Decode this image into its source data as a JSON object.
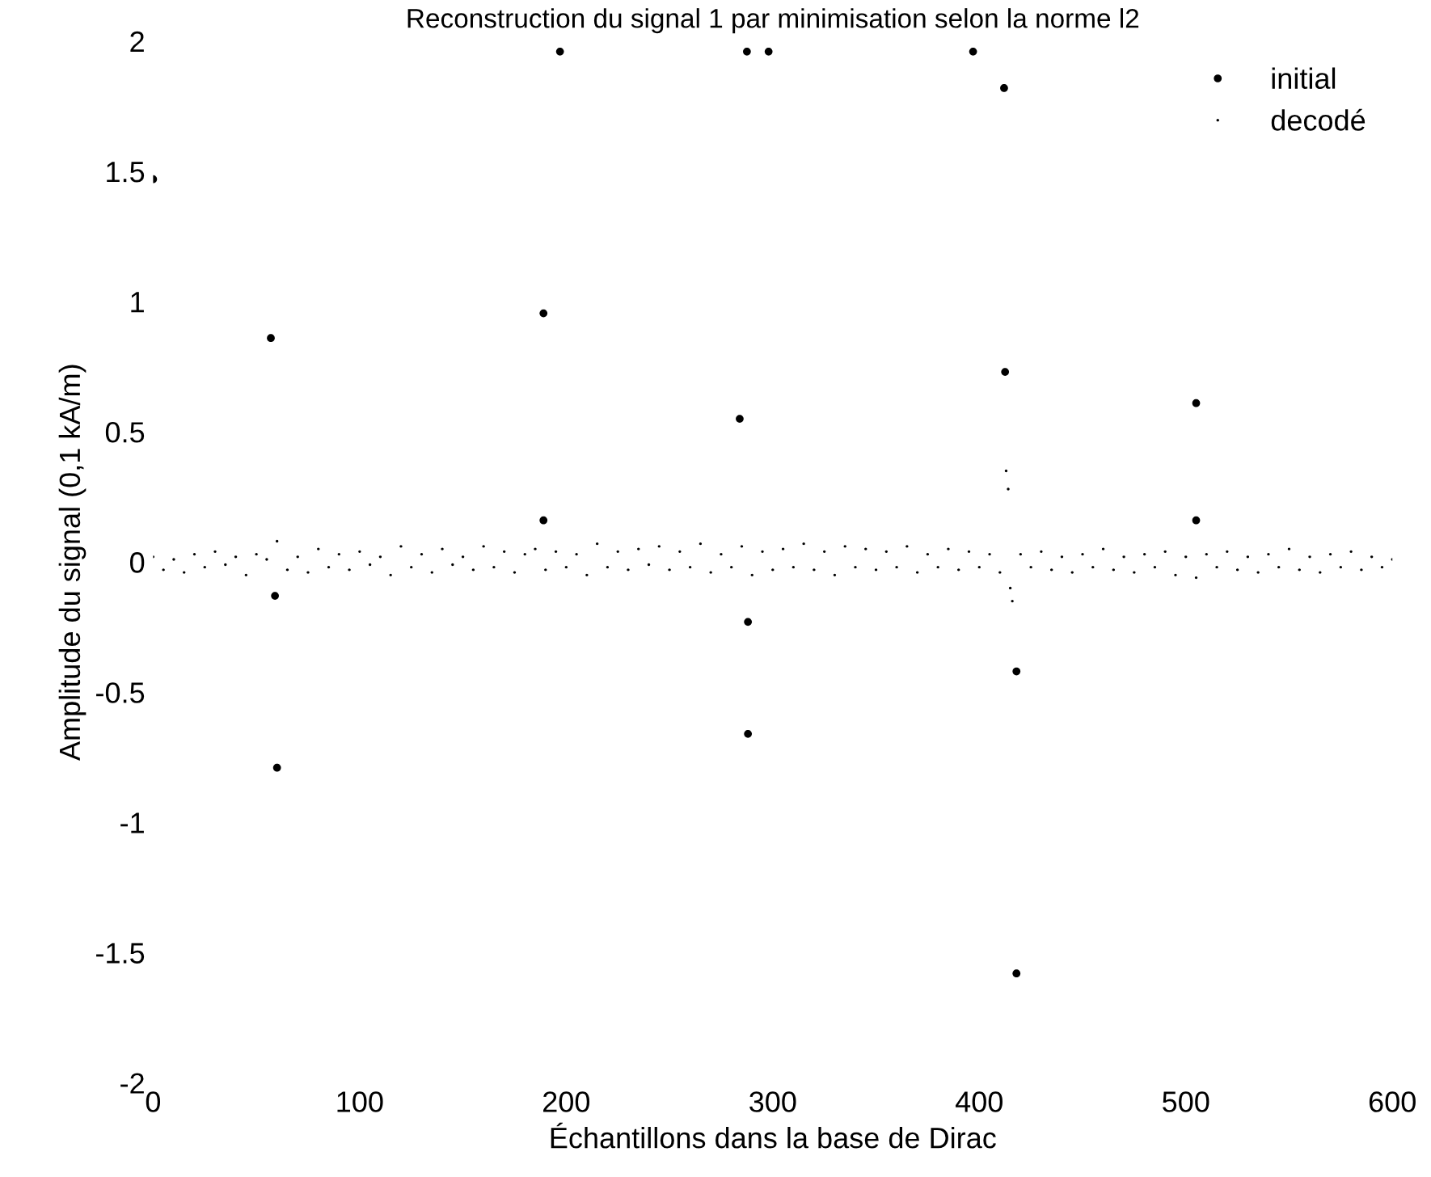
{
  "chart_data": {
    "type": "scatter",
    "title": "Reconstruction du signal 1 par minimisation selon la norme l2",
    "xlabel": "Échantillons dans la base de Dirac",
    "ylabel": "Amplitude du signal (0,1 kA/m)",
    "xlim": [
      0,
      600
    ],
    "ylim": [
      -2,
      2
    ],
    "xticks": [
      0,
      100,
      200,
      300,
      400,
      500,
      600
    ],
    "yticks": [
      -2,
      -1.5,
      -1,
      -0.5,
      0,
      0.5,
      1,
      1.5,
      2
    ],
    "grid": false,
    "legend": "top right",
    "marker": "circle",
    "series": [
      {
        "name": "initial",
        "color": "#000000",
        "x": [
          0,
          57,
          59,
          60,
          189,
          189,
          197,
          284,
          287.5,
          288,
          288,
          298,
          397,
          412,
          412.5,
          418,
          418,
          505,
          505
        ],
        "values": [
          1.47,
          0.86,
          -0.13,
          -0.79,
          0.955,
          0.16,
          1.96,
          0.55,
          1.96,
          -0.66,
          -0.23,
          1.96,
          1.96,
          1.82,
          0.73,
          -0.42,
          -1.58,
          0.61,
          0.16
        ]
      },
      {
        "name": "decodé",
        "color": "#000000",
        "x": [
          0,
          5,
          10,
          15,
          20,
          25,
          30,
          35,
          40,
          45,
          50,
          55,
          60,
          65,
          70,
          75,
          80,
          85,
          90,
          95,
          100,
          105,
          110,
          115,
          120,
          125,
          130,
          135,
          140,
          145,
          150,
          155,
          160,
          165,
          170,
          175,
          180,
          185,
          190,
          195,
          200,
          205,
          210,
          215,
          220,
          225,
          230,
          235,
          240,
          245,
          250,
          255,
          260,
          265,
          270,
          275,
          280,
          285,
          290,
          295,
          300,
          305,
          310,
          315,
          320,
          325,
          330,
          335,
          340,
          345,
          350,
          355,
          360,
          365,
          370,
          375,
          380,
          385,
          390,
          395,
          400,
          405,
          410,
          413,
          414,
          415,
          416,
          420,
          425,
          430,
          435,
          440,
          445,
          450,
          455,
          460,
          465,
          470,
          475,
          480,
          485,
          490,
          495,
          500,
          505,
          510,
          515,
          520,
          525,
          530,
          535,
          540,
          545,
          550,
          555,
          560,
          565,
          570,
          575,
          580,
          585,
          590,
          595,
          600
        ],
        "values": [
          0.02,
          -0.03,
          0.01,
          -0.04,
          0.03,
          -0.02,
          0.04,
          -0.01,
          0.02,
          -0.05,
          0.03,
          0.01,
          0.08,
          -0.03,
          0.02,
          -0.04,
          0.05,
          -0.02,
          0.03,
          -0.03,
          0.04,
          -0.01,
          0.02,
          -0.05,
          0.06,
          -0.02,
          0.03,
          -0.04,
          0.05,
          -0.01,
          0.02,
          -0.03,
          0.06,
          -0.02,
          0.04,
          -0.04,
          0.03,
          0.05,
          -0.03,
          0.04,
          -0.02,
          0.03,
          -0.05,
          0.07,
          -0.02,
          0.04,
          -0.03,
          0.05,
          -0.01,
          0.06,
          -0.03,
          0.04,
          -0.02,
          0.07,
          -0.04,
          0.03,
          -0.02,
          0.06,
          -0.05,
          0.04,
          -0.03,
          0.05,
          -0.02,
          0.07,
          -0.03,
          0.04,
          -0.05,
          0.06,
          -0.02,
          0.05,
          -0.03,
          0.04,
          -0.02,
          0.06,
          -0.04,
          0.03,
          -0.02,
          0.05,
          -0.03,
          0.04,
          -0.02,
          0.03,
          -0.04,
          0.35,
          0.28,
          -0.1,
          -0.15,
          0.03,
          -0.02,
          0.04,
          -0.03,
          0.02,
          -0.04,
          0.03,
          -0.02,
          0.05,
          -0.03,
          0.02,
          -0.04,
          0.03,
          -0.02,
          0.04,
          -0.05,
          0.02,
          -0.06,
          0.03,
          -0.02,
          0.04,
          -0.03,
          0.02,
          -0.04,
          0.03,
          -0.02,
          0.05,
          -0.03,
          0.02,
          -0.04,
          0.03,
          -0.02,
          0.04,
          -0.03,
          0.02,
          -0.02,
          0.01
        ]
      }
    ]
  }
}
